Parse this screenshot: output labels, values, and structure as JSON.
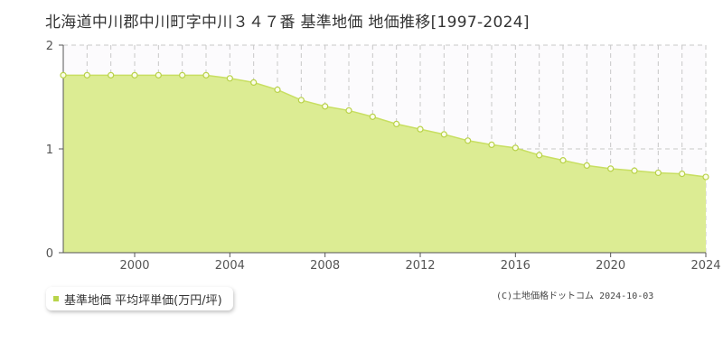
{
  "title": "北海道中川郡中川町字中川３４７番 基準地価 地価推移[1997-2024]",
  "copyright": "(C)土地価格ドットコム 2024-10-03",
  "colors": {
    "fill": "#dcec93",
    "line": "#c8df62",
    "point_fill": "#fbfde9",
    "point_stroke": "#b9d24a",
    "legend_marker": "#b8d44a",
    "grid": "#c8c8c8"
  },
  "chart_data": {
    "type": "area",
    "title": "北海道中川郡中川町字中川３４７番 基準地価 地価推移[1997-2024]",
    "xlabel": "",
    "ylabel": "",
    "xlim": [
      1997,
      2024
    ],
    "ylim": [
      0,
      2
    ],
    "x_ticks": [
      "2000",
      "2004",
      "2008",
      "2012",
      "2016",
      "2020",
      "2024"
    ],
    "y_ticks": [
      "0",
      "1",
      "2"
    ],
    "grid": true,
    "legend_position": "bottom-left",
    "series": [
      {
        "name": "基準地価 平均坪単価(万円/坪)",
        "x": [
          1997,
          1998,
          1999,
          2000,
          2001,
          2002,
          2003,
          2004,
          2005,
          2006,
          2007,
          2008,
          2009,
          2010,
          2011,
          2012,
          2013,
          2014,
          2015,
          2016,
          2017,
          2018,
          2019,
          2020,
          2021,
          2022,
          2023,
          2024
        ],
        "values": [
          1.71,
          1.71,
          1.71,
          1.71,
          1.71,
          1.71,
          1.71,
          1.68,
          1.64,
          1.57,
          1.47,
          1.41,
          1.37,
          1.31,
          1.24,
          1.19,
          1.14,
          1.08,
          1.04,
          1.01,
          0.94,
          0.89,
          0.84,
          0.81,
          0.79,
          0.77,
          0.76,
          0.73
        ]
      }
    ]
  }
}
